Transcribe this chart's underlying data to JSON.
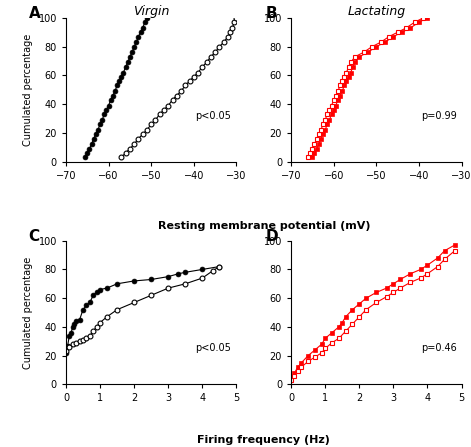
{
  "panel_A_title": "Virgin",
  "panel_B_title": "Lactating",
  "panel_A_pval": "p<0.05",
  "panel_B_pval": "p=0.99",
  "panel_C_pval": "p<0.05",
  "panel_D_pval": "p=0.46",
  "xlabel_AB": "Resting membrane potential (mV)",
  "xlabel_CD": "Firing frequency (Hz)",
  "ylabel_AC": "Cumulated percentage",
  "xlim_AB": [
    -70,
    -30
  ],
  "ylim_AB": [
    0,
    100
  ],
  "xlim_CD": [
    0,
    5
  ],
  "ylim_CD": [
    0,
    100
  ],
  "xticks_AB": [
    -70,
    -60,
    -50,
    -40,
    -30
  ],
  "xticks_CD": [
    0,
    1,
    2,
    3,
    4,
    5
  ],
  "yticks_AC": [
    0,
    20,
    40,
    60,
    80,
    100
  ],
  "color_black": "#000000",
  "color_red": "#FF0000",
  "panel_labels": [
    "A",
    "B",
    "C",
    "D"
  ],
  "A_filled_x": [
    -65.5,
    -65,
    -64.5,
    -64,
    -63.5,
    -63,
    -62.5,
    -62,
    -61.5,
    -61,
    -60.5,
    -60,
    -59.5,
    -59,
    -58.5,
    -58,
    -57.5,
    -57,
    -56.5,
    -56,
    -55.5,
    -55,
    -54.5,
    -54,
    -53.5,
    -53,
    -52.5,
    -52,
    -51.5,
    -51
  ],
  "A_filled_y": [
    3,
    6,
    9,
    12,
    16,
    19,
    22,
    26,
    29,
    33,
    36,
    39,
    43,
    46,
    49,
    53,
    56,
    59,
    62,
    66,
    69,
    73,
    76,
    80,
    83,
    87,
    90,
    93,
    97,
    100
  ],
  "A_open_x": [
    -57,
    -56,
    -55,
    -54,
    -53,
    -52,
    -51,
    -50,
    -49,
    -48,
    -47,
    -46,
    -45,
    -44,
    -43,
    -42,
    -41,
    -40,
    -39,
    -38,
    -37,
    -36,
    -35,
    -34,
    -33,
    -32,
    -31.5,
    -31,
    -30.5,
    -30
  ],
  "A_open_y": [
    3,
    6,
    9,
    12,
    16,
    19,
    22,
    26,
    29,
    33,
    36,
    39,
    43,
    46,
    49,
    53,
    56,
    59,
    62,
    66,
    69,
    73,
    76,
    80,
    83,
    87,
    90,
    93,
    97,
    100
  ],
  "B_filled_x": [
    -65,
    -64.5,
    -64,
    -63.5,
    -63,
    -62.5,
    -62,
    -61.5,
    -61,
    -60.5,
    -60,
    -59.5,
    -59,
    -58.5,
    -58,
    -57.5,
    -57,
    -56.5,
    -56,
    -55.5,
    -55,
    -54,
    -52,
    -50,
    -48,
    -46,
    -44,
    -42,
    -40,
    -38
  ],
  "B_filled_y": [
    3,
    6,
    9,
    12,
    16,
    19,
    22,
    26,
    29,
    33,
    36,
    39,
    43,
    46,
    49,
    53,
    56,
    59,
    62,
    66,
    69,
    73,
    76,
    80,
    83,
    87,
    90,
    93,
    97,
    100
  ],
  "B_open_x": [
    -66,
    -65.5,
    -65,
    -64.5,
    -64,
    -63.5,
    -63,
    -62.5,
    -62,
    -61.5,
    -61,
    -60.5,
    -60,
    -59.5,
    -59,
    -58.5,
    -58,
    -57.5,
    -57,
    -56.5,
    -56,
    -55,
    -53,
    -51,
    -49,
    -47,
    -45,
    -43,
    -41,
    -39
  ],
  "B_open_y": [
    3,
    6,
    9,
    12,
    16,
    19,
    22,
    26,
    29,
    33,
    36,
    39,
    43,
    46,
    49,
    53,
    56,
    59,
    62,
    66,
    69,
    73,
    76,
    80,
    83,
    87,
    90,
    93,
    97,
    100
  ],
  "C_filled_x": [
    0,
    0.05,
    0.1,
    0.15,
    0.2,
    0.25,
    0.3,
    0.4,
    0.5,
    0.6,
    0.7,
    0.8,
    0.9,
    1.0,
    1.2,
    1.5,
    2.0,
    2.5,
    3.0,
    3.3,
    3.5,
    4.0,
    4.5
  ],
  "C_filled_y": [
    22,
    27,
    34,
    36,
    40,
    42,
    44,
    45,
    52,
    55,
    57,
    62,
    64,
    66,
    67,
    70,
    72,
    73,
    75,
    77,
    78,
    80,
    82
  ],
  "C_open_x": [
    0,
    0.1,
    0.2,
    0.3,
    0.4,
    0.5,
    0.6,
    0.7,
    0.8,
    0.9,
    1.0,
    1.2,
    1.5,
    2.0,
    2.5,
    3.0,
    3.5,
    4.0,
    4.3,
    4.5
  ],
  "C_open_y": [
    23,
    26,
    28,
    29,
    30,
    31,
    32,
    34,
    37,
    40,
    43,
    47,
    52,
    57,
    62,
    67,
    70,
    74,
    79,
    82
  ],
  "D_filled_x": [
    0,
    0.1,
    0.2,
    0.3,
    0.5,
    0.7,
    0.9,
    1.0,
    1.2,
    1.4,
    1.5,
    1.6,
    1.8,
    2.0,
    2.2,
    2.5,
    2.8,
    3.0,
    3.2,
    3.5,
    3.8,
    4.0,
    4.3,
    4.5,
    4.8
  ],
  "D_filled_y": [
    5,
    8,
    12,
    15,
    20,
    24,
    28,
    32,
    36,
    40,
    43,
    47,
    52,
    56,
    60,
    64,
    67,
    70,
    73,
    77,
    80,
    83,
    88,
    93,
    97
  ],
  "D_open_x": [
    0,
    0.1,
    0.2,
    0.3,
    0.5,
    0.7,
    0.9,
    1.0,
    1.2,
    1.4,
    1.6,
    1.8,
    2.0,
    2.2,
    2.5,
    2.8,
    3.0,
    3.2,
    3.5,
    3.8,
    4.0,
    4.3,
    4.5,
    4.8
  ],
  "D_open_y": [
    3,
    6,
    9,
    12,
    16,
    19,
    22,
    25,
    29,
    32,
    37,
    42,
    47,
    52,
    57,
    61,
    64,
    67,
    71,
    74,
    77,
    82,
    87,
    93
  ]
}
